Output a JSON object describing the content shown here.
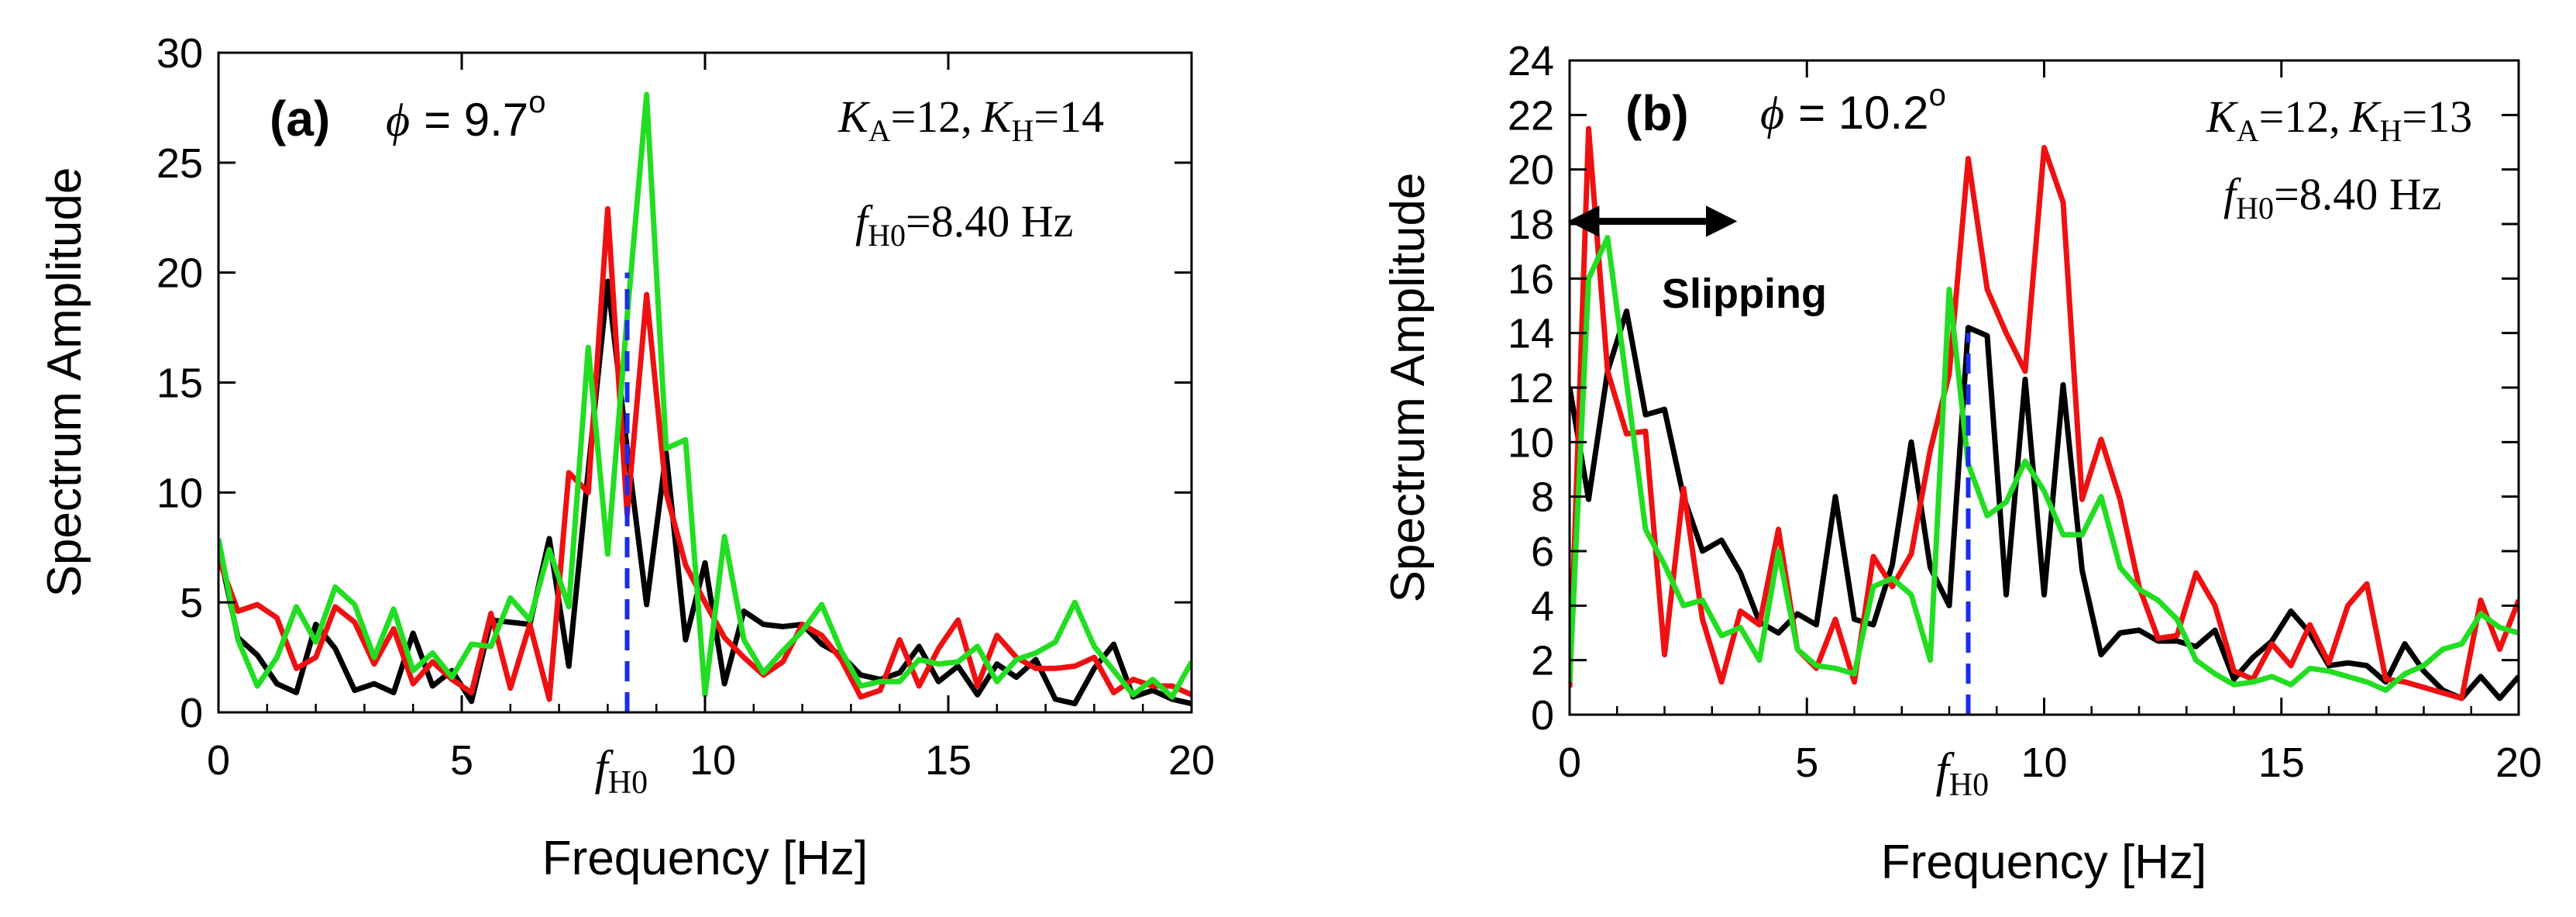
{
  "chart_data": [
    {
      "type": "line",
      "panel_label": "(a)",
      "phi_symbol": "ϕ",
      "phi_text": "= 9.7",
      "degree": "o",
      "ka_text": "=12,",
      "kh_text": "=14",
      "fh0_value": "=8.40 Hz",
      "K_letter": "K",
      "A_sub": "A",
      "H_sub": "H",
      "f_letter": "f",
      "H0_sub": "H0",
      "xlabel": "Frequency [Hz]",
      "ylabel": "Spectrum Amplitude",
      "xlim": [
        0,
        20
      ],
      "ylim": [
        0,
        30
      ],
      "xticks": [
        0,
        5,
        10,
        15,
        20
      ],
      "xtick_labels": [
        "0",
        "5",
        "",
        "15",
        "20"
      ],
      "yticks": [
        0,
        5,
        10,
        15,
        20,
        25,
        30
      ],
      "ytick_labels": [
        "0",
        "5",
        "10",
        "15",
        "20",
        "25",
        "30"
      ],
      "fh0": 8.4,
      "fh0_marker_label": "f",
      "fh0_marker_sub": "H0",
      "fh0_line_top": 20,
      "fh0_line_color": "#1a2ee6",
      "x": [
        0,
        0.4,
        0.8,
        1.2,
        1.6,
        2.0,
        2.4,
        2.8,
        3.2,
        3.6,
        4.0,
        4.4,
        4.8,
        5.2,
        5.6,
        6.0,
        6.4,
        6.8,
        7.2,
        7.6,
        8.0,
        8.4,
        8.8,
        9.2,
        9.6,
        10.0,
        10.4,
        10.8,
        11.2,
        11.6,
        12.0,
        12.4,
        12.8,
        13.2,
        13.6,
        14.0,
        14.4,
        14.8,
        15.2,
        15.6,
        16.0,
        16.4,
        16.8,
        17.2,
        17.6,
        18.0,
        18.4,
        18.8,
        19.2,
        19.6,
        20.0
      ],
      "series": [
        {
          "name": "black",
          "color": "#000000",
          "values": [
            7.5,
            3.4,
            2.6,
            1.3,
            0.9,
            4.0,
            2.9,
            1.0,
            1.3,
            0.9,
            3.6,
            1.2,
            1.9,
            0.5,
            4.2,
            4.1,
            4.0,
            7.9,
            2.1,
            11.0,
            19.6,
            12.0,
            4.9,
            11.8,
            3.3,
            6.8,
            1.3,
            4.6,
            4.0,
            3.9,
            4.0,
            3.1,
            2.6,
            1.7,
            1.5,
            1.8,
            3.0,
            1.4,
            2.1,
            0.8,
            2.2,
            1.6,
            2.4,
            0.6,
            0.4,
            2.0,
            3.1,
            0.7,
            1.0,
            0.6,
            0.4
          ]
        },
        {
          "name": "red",
          "color": "#ee1111",
          "values": [
            7.0,
            4.6,
            4.9,
            4.3,
            2.0,
            2.5,
            4.8,
            4.1,
            2.2,
            3.8,
            1.3,
            2.3,
            1.5,
            0.9,
            4.5,
            1.1,
            4.0,
            0.6,
            10.9,
            10.0,
            22.9,
            9.0,
            19.0,
            10.0,
            6.7,
            5.0,
            3.4,
            2.5,
            1.7,
            2.3,
            4.0,
            3.5,
            2.4,
            0.7,
            1.0,
            3.3,
            1.2,
            2.9,
            4.2,
            1.2,
            3.5,
            2.5,
            2.0,
            2.0,
            2.1,
            2.5,
            0.9,
            1.5,
            1.2,
            1.2,
            0.8
          ]
        },
        {
          "name": "green",
          "color": "#22dd22",
          "values": [
            7.9,
            3.3,
            1.2,
            2.5,
            4.8,
            3.2,
            5.7,
            4.9,
            2.5,
            4.7,
            1.9,
            2.7,
            1.6,
            3.1,
            3.0,
            5.2,
            4.2,
            7.4,
            4.8,
            16.6,
            7.2,
            18.0,
            28.1,
            12.0,
            12.4,
            0.8,
            8.0,
            3.3,
            1.8,
            2.8,
            3.7,
            4.9,
            2.8,
            1.2,
            1.4,
            1.4,
            2.4,
            2.2,
            2.3,
            3.0,
            1.4,
            2.4,
            2.7,
            3.2,
            5.0,
            3.0,
            1.9,
            0.8,
            1.5,
            0.7,
            2.3
          ]
        }
      ]
    },
    {
      "type": "line",
      "panel_label": "(b)",
      "phi_symbol": "ϕ",
      "phi_text": "= 10.2",
      "degree": "o",
      "ka_text": "=12,",
      "kh_text": "=13",
      "fh0_value": "=8.40 Hz",
      "K_letter": "K",
      "A_sub": "A",
      "H_sub": "H",
      "f_letter": "f",
      "H0_sub": "H0",
      "annotation": "Slipping",
      "xlabel": "Frequency [Hz]",
      "ylabel": "Spectrum Amplitude",
      "xlim": [
        0,
        20
      ],
      "ylim": [
        0,
        24
      ],
      "xticks": [
        0,
        5,
        10,
        15,
        20
      ],
      "xtick_labels": [
        "0",
        "5",
        "10",
        "15",
        "20"
      ],
      "yticks": [
        0,
        2,
        4,
        6,
        8,
        10,
        12,
        14,
        16,
        18,
        20,
        22,
        24
      ],
      "ytick_labels": [
        "0",
        "2",
        "4",
        "6",
        "8",
        "10",
        "12",
        "14",
        "16",
        "18",
        "20",
        "22",
        "24"
      ],
      "fh0": 8.4,
      "fh0_marker_label": "f",
      "fh0_marker_sub": "H0",
      "fh0_line_top": 14,
      "fh0_line_color": "#1a2ee6",
      "arrow_from": [
        0,
        18.1
      ],
      "arrow_to": [
        3.4,
        18.1
      ],
      "x": [
        0,
        0.4,
        0.8,
        1.2,
        1.6,
        2.0,
        2.4,
        2.8,
        3.2,
        3.6,
        4.0,
        4.4,
        4.8,
        5.2,
        5.6,
        6.0,
        6.4,
        6.8,
        7.2,
        7.6,
        8.0,
        8.4,
        8.8,
        9.2,
        9.6,
        10.0,
        10.4,
        10.8,
        11.2,
        11.6,
        12.0,
        12.4,
        12.8,
        13.2,
        13.6,
        14.0,
        14.4,
        14.8,
        15.2,
        15.6,
        16.0,
        16.4,
        16.8,
        17.2,
        17.6,
        18.0,
        18.4,
        18.8,
        19.2,
        19.6,
        20.0
      ],
      "series": [
        {
          "name": "black",
          "color": "#000000",
          "values": [
            12.0,
            7.9,
            12.6,
            14.8,
            11.0,
            11.2,
            8.0,
            6.0,
            6.4,
            5.2,
            3.4,
            3.0,
            3.7,
            3.3,
            8.0,
            3.5,
            3.3,
            5.5,
            10.0,
            5.4,
            4.0,
            14.2,
            13.9,
            4.4,
            12.3,
            4.4,
            12.1,
            5.3,
            2.2,
            3.0,
            3.1,
            2.7,
            2.7,
            2.5,
            3.1,
            1.3,
            2.1,
            2.7,
            3.8,
            3.0,
            1.8,
            1.9,
            1.8,
            1.2,
            2.6,
            1.6,
            0.9,
            0.6,
            1.4,
            0.6,
            1.4
          ]
        },
        {
          "name": "red",
          "color": "#ee1111",
          "values": [
            1.0,
            21.5,
            12.6,
            10.3,
            10.4,
            2.2,
            8.3,
            3.5,
            1.2,
            3.8,
            3.3,
            6.8,
            2.4,
            1.7,
            3.5,
            1.2,
            5.8,
            4.7,
            5.9,
            9.7,
            12.5,
            20.4,
            15.6,
            14.0,
            12.6,
            20.8,
            18.8,
            7.9,
            10.1,
            7.9,
            4.7,
            2.8,
            2.9,
            5.2,
            4.0,
            1.6,
            1.3,
            2.6,
            1.8,
            3.3,
            1.9,
            4.0,
            4.8,
            1.3,
            1.2,
            1.0,
            0.8,
            0.6,
            4.2,
            2.4,
            4.2
          ]
        },
        {
          "name": "green",
          "color": "#22dd22",
          "values": [
            1.2,
            16.0,
            17.5,
            12.2,
            6.8,
            5.5,
            4.0,
            4.2,
            2.9,
            3.2,
            2.0,
            6.0,
            2.4,
            1.8,
            1.7,
            1.5,
            4.7,
            5.0,
            4.4,
            2.0,
            15.6,
            9.2,
            7.3,
            7.8,
            9.3,
            8.2,
            6.6,
            6.6,
            8.0,
            5.4,
            4.6,
            4.2,
            3.5,
            2.0,
            1.5,
            1.1,
            1.2,
            1.4,
            1.1,
            1.7,
            1.6,
            1.4,
            1.2,
            0.9,
            1.5,
            1.8,
            2.4,
            2.6,
            3.7,
            3.2,
            3.0
          ]
        }
      ]
    }
  ]
}
